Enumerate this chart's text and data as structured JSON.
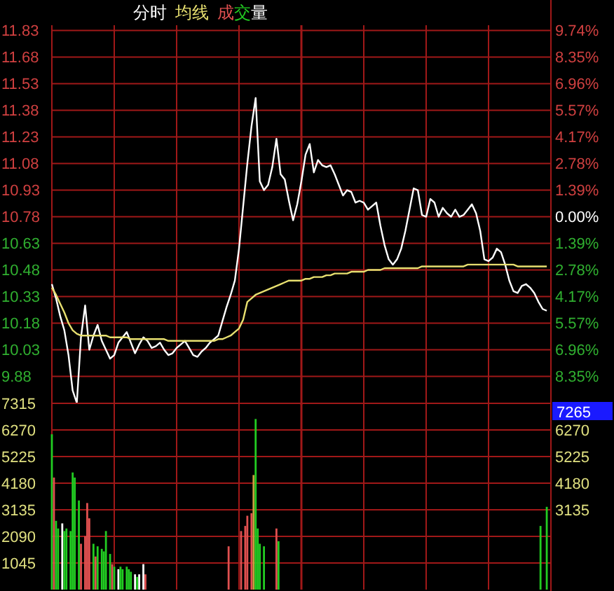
{
  "chart_data": [
    {
      "type": "line",
      "categories": [
        null,
        null,
        null,
        null,
        null,
        null,
        null,
        null,
        null,
        null,
        null,
        null,
        null,
        null,
        null,
        null,
        null,
        null,
        null,
        null,
        null,
        null,
        null,
        null,
        null,
        null,
        null,
        null,
        null,
        null,
        null,
        null,
        null,
        null,
        null,
        null,
        null,
        null,
        null,
        null,
        null,
        null,
        null,
        null,
        null,
        null,
        null,
        null,
        null,
        null,
        null,
        null,
        null,
        null,
        null,
        null,
        null,
        null,
        null,
        null,
        null,
        null,
        null,
        null,
        null,
        null,
        null,
        null,
        null,
        null,
        null,
        null,
        null,
        null,
        null,
        null,
        null,
        null,
        null,
        null,
        null,
        null,
        null,
        null,
        null,
        null,
        null,
        null,
        null,
        null,
        null,
        null,
        null,
        null,
        null,
        null,
        null,
        null,
        null,
        null,
        null,
        null,
        null,
        null,
        null,
        null,
        null,
        null,
        null,
        null,
        null,
        null,
        null,
        null,
        null,
        null,
        null,
        null,
        null,
        null,
        null
      ],
      "series": [
        {
          "name": "分时",
          "color": "#ffffff",
          "values": [
            10.4,
            10.32,
            10.22,
            10.14,
            10.0,
            9.8,
            9.73,
            10.1,
            10.28,
            10.03,
            10.11,
            10.17,
            10.08,
            10.03,
            9.98,
            10.0,
            10.07,
            10.1,
            10.13,
            10.07,
            10.01,
            10.06,
            10.1,
            10.08,
            10.04,
            10.05,
            10.07,
            10.03,
            10.0,
            10.01,
            10.04,
            10.06,
            10.08,
            10.04,
            10.0,
            9.99,
            10.02,
            10.04,
            10.07,
            10.09,
            10.11,
            10.19,
            10.27,
            10.34,
            10.42,
            10.6,
            10.84,
            11.08,
            11.29,
            11.45,
            10.98,
            10.93,
            10.96,
            11.06,
            11.22,
            11.02,
            10.99,
            10.87,
            10.76,
            10.85,
            10.98,
            11.13,
            11.19,
            11.03,
            11.1,
            11.07,
            11.06,
            11.07,
            11.02,
            10.96,
            10.9,
            10.93,
            10.92,
            10.86,
            10.87,
            10.86,
            10.82,
            10.84,
            10.86,
            10.73,
            10.62,
            10.54,
            10.51,
            10.54,
            10.6,
            10.7,
            10.82,
            10.94,
            10.93,
            10.79,
            10.78,
            10.88,
            10.86,
            10.78,
            10.83,
            10.8,
            10.78,
            10.82,
            10.78,
            10.79,
            10.82,
            10.85,
            10.8,
            10.7,
            10.54,
            10.53,
            10.55,
            10.6,
            10.58,
            10.51,
            10.42,
            10.36,
            10.35,
            10.39,
            10.4,
            10.38,
            10.35,
            10.3,
            10.26,
            10.25,
            null
          ]
        },
        {
          "name": "均线",
          "color": "#e8e070",
          "values": [
            10.38,
            10.34,
            10.29,
            10.24,
            10.18,
            10.14,
            10.12,
            10.11,
            10.11,
            10.11,
            10.11,
            10.11,
            10.11,
            10.11,
            10.1,
            10.1,
            10.1,
            10.1,
            10.1,
            10.09,
            10.09,
            10.09,
            10.09,
            10.09,
            10.09,
            10.09,
            10.09,
            10.09,
            10.08,
            10.08,
            10.08,
            10.08,
            10.08,
            10.08,
            10.08,
            10.08,
            10.08,
            10.08,
            10.08,
            10.08,
            10.09,
            10.09,
            10.1,
            10.11,
            10.13,
            10.15,
            10.2,
            10.3,
            10.32,
            10.34,
            10.35,
            10.36,
            10.37,
            10.38,
            10.39,
            10.4,
            10.41,
            10.42,
            10.42,
            10.42,
            10.42,
            10.43,
            10.43,
            10.44,
            10.44,
            10.44,
            10.45,
            10.45,
            10.46,
            10.46,
            10.46,
            10.46,
            10.47,
            10.47,
            10.47,
            10.47,
            10.48,
            10.48,
            10.48,
            10.48,
            10.49,
            10.49,
            10.49,
            10.49,
            10.49,
            10.49,
            10.49,
            10.49,
            10.49,
            10.5,
            10.5,
            10.5,
            10.5,
            10.5,
            10.5,
            10.5,
            10.5,
            10.5,
            10.5,
            10.5,
            10.51,
            10.51,
            10.51,
            10.51,
            10.51,
            10.51,
            10.51,
            10.51,
            10.51,
            10.51,
            10.51,
            10.51,
            10.5,
            10.5,
            10.5,
            10.5,
            10.5,
            10.5,
            10.5,
            10.5,
            null
          ]
        }
      ],
      "ylim": [
        9.72,
        11.86
      ],
      "yticks": [
        9.88,
        10.03,
        10.18,
        10.33,
        10.48,
        10.63,
        10.78,
        10.93,
        11.08,
        11.23,
        11.38,
        11.53,
        11.68,
        11.83
      ],
      "y2lim": [
        -9.83,
        10.02
      ],
      "y2ticks": [
        {
          "value": -8.35,
          "label": "8.35%"
        },
        {
          "value": -6.96,
          "label": "6.96%"
        },
        {
          "value": -5.57,
          "label": "5.57%"
        },
        {
          "value": -4.17,
          "label": "4.17%"
        },
        {
          "value": -2.78,
          "label": "2.78%"
        },
        {
          "value": -1.39,
          "label": "1.39%"
        },
        {
          "value": 0,
          "label": "0.00%"
        },
        {
          "value": 1.39,
          "label": "1.39%"
        },
        {
          "value": 2.78,
          "label": "2.78%"
        },
        {
          "value": 4.17,
          "label": "4.17%"
        },
        {
          "value": 5.57,
          "label": "5.57%"
        },
        {
          "value": 6.96,
          "label": "6.96%"
        },
        {
          "value": 8.35,
          "label": "8.35%"
        },
        {
          "value": 9.74,
          "label": "9.74%"
        }
      ],
      "grid": true,
      "tick_labels": "y"
    },
    {
      "type": "bar",
      "title": "成交量",
      "categories": [
        null,
        null,
        null,
        null,
        null,
        null,
        null,
        null,
        null,
        null,
        null,
        null,
        null,
        null,
        null,
        null,
        null,
        null,
        null,
        null,
        null,
        null,
        null,
        null,
        null,
        null,
        null,
        null,
        null,
        null,
        null,
        null,
        null,
        null,
        null,
        null,
        null,
        null,
        null,
        null,
        null,
        null,
        null,
        null,
        null,
        null,
        null,
        null,
        null,
        null,
        null,
        null,
        null,
        null,
        null,
        null,
        null,
        null,
        null,
        null,
        null,
        null,
        null,
        null,
        null,
        null,
        null,
        null,
        null,
        null,
        null,
        null,
        null,
        null,
        null,
        null,
        null,
        null,
        null,
        null,
        null,
        null,
        null,
        null,
        null,
        null,
        null,
        null,
        null,
        null,
        null,
        null,
        null,
        null,
        null,
        null,
        null,
        null,
        null,
        null,
        null,
        null,
        null,
        null,
        null,
        null,
        null,
        null,
        null,
        null,
        null,
        null,
        null,
        null,
        null,
        null,
        null,
        null,
        null,
        null,
        null,
        null,
        null,
        null,
        null,
        null,
        null,
        null,
        null,
        null,
        null,
        null,
        null,
        null,
        null,
        null,
        null,
        null,
        null,
        null,
        null,
        null,
        null,
        null,
        null,
        null,
        null,
        null,
        null,
        null,
        null,
        null,
        null,
        null,
        null,
        null,
        null,
        null,
        null,
        null,
        null,
        null,
        null,
        null,
        null,
        null,
        null,
        null,
        null,
        null,
        null,
        null,
        null,
        null,
        null,
        null,
        null,
        null,
        null,
        null,
        null,
        null,
        null,
        null,
        null,
        null,
        null,
        null,
        null,
        null,
        null,
        null,
        null,
        null,
        null,
        null,
        null,
        null,
        null,
        null,
        null,
        null,
        null,
        null,
        null,
        null,
        null,
        null,
        null,
        null,
        null,
        null,
        null,
        null,
        null,
        null,
        null,
        null,
        null,
        null,
        null,
        null,
        null,
        null,
        null,
        null,
        null,
        null,
        null,
        null,
        null,
        null,
        null,
        null,
        null,
        null,
        null,
        null,
        null,
        null,
        null
      ],
      "values": [
        6100,
        4400,
        2700,
        2400,
        null,
        2600,
        2300,
        2400,
        null,
        2300,
        4600,
        4400,
        null,
        3500,
        1800,
        null,
        2100,
        3400,
        2800,
        null,
        1800,
        1300,
        1700,
        null,
        1600,
        1500,
        2300,
        null,
        1400,
        1000,
        900,
        null,
        800,
        900,
        800,
        null,
        900,
        800,
        700,
        null,
        600,
        500,
        600,
        null,
        1000,
        600,
        null,
        null,
        null,
        null,
        null,
        null,
        null,
        null,
        null,
        null,
        null,
        null,
        null,
        null,
        null,
        null,
        null,
        null,
        null,
        null,
        null,
        null,
        null,
        null,
        null,
        null,
        null,
        null,
        null,
        null,
        null,
        null,
        null,
        null,
        null,
        null,
        null,
        null,
        null,
        1700,
        null,
        null,
        null,
        null,
        null,
        2300,
        null,
        2500,
        2900,
        null,
        3000,
        4500,
        6700,
        2400,
        1800,
        null,
        1700,
        null,
        null,
        null,
        null,
        null,
        2400,
        1900,
        null,
        null,
        null,
        null,
        null,
        null,
        null,
        null,
        null,
        null,
        null,
        null,
        null,
        null,
        null,
        null,
        null,
        null,
        null,
        null,
        null,
        null,
        null,
        null,
        null,
        null,
        null,
        null,
        null,
        null,
        null,
        null,
        null,
        null,
        null,
        null,
        null,
        null,
        null,
        null,
        null,
        null,
        null,
        null,
        null,
        null,
        null,
        null,
        null,
        null,
        null,
        null,
        null,
        null,
        null,
        null,
        null,
        null,
        null,
        null,
        null,
        null,
        null,
        null,
        null,
        null,
        null,
        null,
        null,
        null,
        null,
        null,
        null,
        null,
        null,
        null,
        null,
        null,
        null,
        null,
        null,
        null,
        null,
        null,
        null,
        null,
        null,
        null,
        null,
        null,
        null,
        null,
        null,
        null,
        null,
        null,
        null,
        null,
        null,
        null,
        null,
        null,
        null,
        null,
        null,
        null,
        null,
        null,
        null,
        null,
        null,
        null,
        null,
        null,
        null,
        null,
        null,
        null,
        null,
        null,
        null,
        null,
        null,
        null,
        null,
        2500,
        null,
        null,
        3250,
        null,
        null
      ],
      "colors": [
        "#22cc22",
        "#e05050",
        "#22cc22",
        "#22cc22",
        null,
        "#ffffff",
        "#22cc22",
        "#22cc22",
        null,
        "#22cc22",
        "#22cc22",
        "#22cc22",
        null,
        "#22cc22",
        "#e05050",
        null,
        "#e05050",
        "#e05050",
        "#e05050",
        null,
        "#22cc22",
        "#e05050",
        "#22cc22",
        null,
        "#22cc22",
        "#22cc22",
        "#22cc22",
        null,
        "#22cc22",
        "#e05050",
        "#22cc22",
        null,
        "#ffffff",
        "#22cc22",
        "#22cc22",
        null,
        "#22cc22",
        "#22cc22",
        "#22cc22",
        null,
        "#ffffff",
        "#22cc22",
        "#ffffff",
        null,
        "#ffffff",
        "#e05050",
        null,
        null,
        null,
        null,
        null,
        null,
        null,
        null,
        null,
        null,
        null,
        null,
        null,
        null,
        null,
        null,
        null,
        null,
        null,
        null,
        null,
        null,
        null,
        null,
        null,
        null,
        null,
        null,
        null,
        null,
        null,
        null,
        null,
        null,
        null,
        null,
        null,
        null,
        null,
        "#e05050",
        null,
        null,
        null,
        null,
        null,
        "#e05050",
        null,
        "#e05050",
        "#e05050",
        null,
        "#e05050",
        "#c8a040",
        "#22cc22",
        "#22cc22",
        "#22cc22",
        null,
        "#22cc22",
        null,
        null,
        null,
        null,
        null,
        "#e05050",
        "#22cc22",
        null,
        null,
        null,
        null,
        null,
        null,
        null,
        null,
        null,
        null,
        null,
        null,
        null,
        null,
        null,
        null,
        null,
        null,
        null,
        null,
        null,
        null,
        null,
        null,
        null,
        null,
        null,
        null,
        null,
        null,
        null,
        null,
        null,
        null,
        null,
        null,
        null,
        null,
        null,
        null,
        null,
        null,
        null,
        null,
        null,
        null,
        null,
        null,
        null,
        null,
        null,
        null,
        null,
        null,
        null,
        null,
        null,
        null,
        null,
        null,
        null,
        null,
        null,
        null,
        null,
        null,
        null,
        null,
        null,
        null,
        null,
        null,
        null,
        null,
        null,
        null,
        null,
        null,
        null,
        null,
        null,
        null,
        null,
        null,
        null,
        null,
        null,
        null,
        null,
        null,
        null,
        null,
        null,
        null,
        null,
        null,
        null,
        null,
        null,
        null,
        null,
        null,
        null,
        null,
        null,
        null,
        null,
        null,
        null,
        null,
        null,
        null,
        null,
        null,
        null,
        null,
        null,
        null,
        null,
        null,
        null,
        null,
        null,
        null,
        null,
        "#22cc22",
        null,
        null,
        "#22cc22",
        null,
        null
      ],
      "ylim": [
        0,
        7315
      ],
      "yticks": [
        1045,
        2090,
        3135,
        4180,
        5225,
        6270,
        7315
      ],
      "y2lim": [
        0,
        7315
      ],
      "y2ticks": [
        3135,
        4180,
        5225,
        6270
      ],
      "grid": true,
      "tick_labels": "y",
      "annotations": [
        "7265"
      ]
    }
  ]
}
